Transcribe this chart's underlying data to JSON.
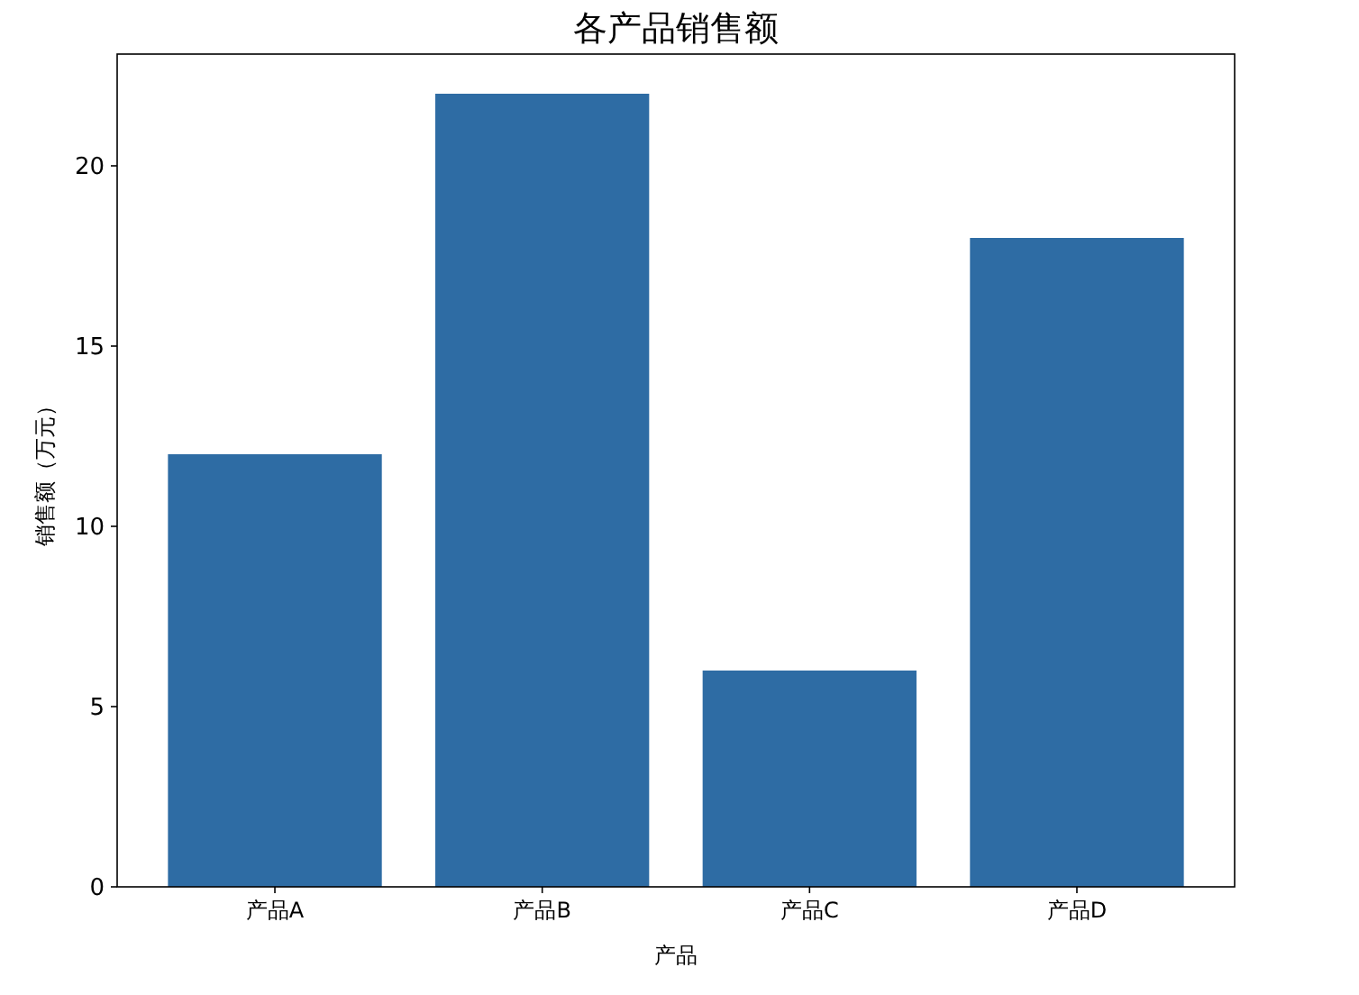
{
  "chart_data": {
    "type": "bar",
    "title": "各产品销售额",
    "xlabel": "产品",
    "ylabel": "销售额（万元）",
    "categories": [
      "产品A",
      "产品B",
      "产品C",
      "产品D"
    ],
    "values": [
      12,
      22,
      6,
      18
    ],
    "color": "#2e6ca4",
    "ylim": [
      0,
      23.1
    ],
    "yticks": [
      0,
      5,
      10,
      15,
      20
    ],
    "grid": false
  }
}
